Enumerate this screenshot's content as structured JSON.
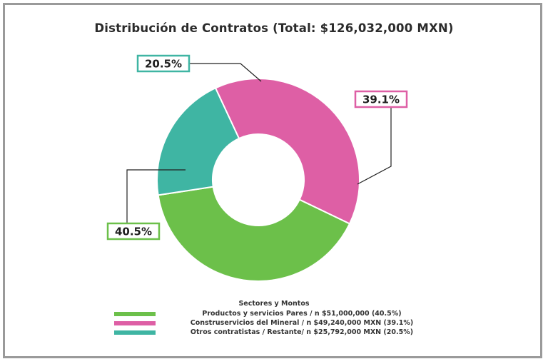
{
  "chart_data": {
    "type": "pie",
    "variant": "donut",
    "title": "Distribución de Contratos (Total: $126,032,000 MXN)",
    "legend_title": "Sectores y Montos",
    "legend_position": "bottom",
    "slices": [
      {
        "label": "Productos y servicios Pares / n $51,000,000 (40.5%)",
        "value": 51000000,
        "percent_label": "40.5%",
        "color": "#6cc04a"
      },
      {
        "label": "Construservicios del Mineral / n $49,240,000 MXN (39.1%)",
        "value": 49240000,
        "percent_label": "39.1%",
        "color": "#de5fa5"
      },
      {
        "label": "Otros contratistas / Restante/ n $25,792,000 MXN (20.5%)",
        "value": 25792000,
        "percent_label": "20.5%",
        "color": "#3fb5a3"
      }
    ]
  }
}
